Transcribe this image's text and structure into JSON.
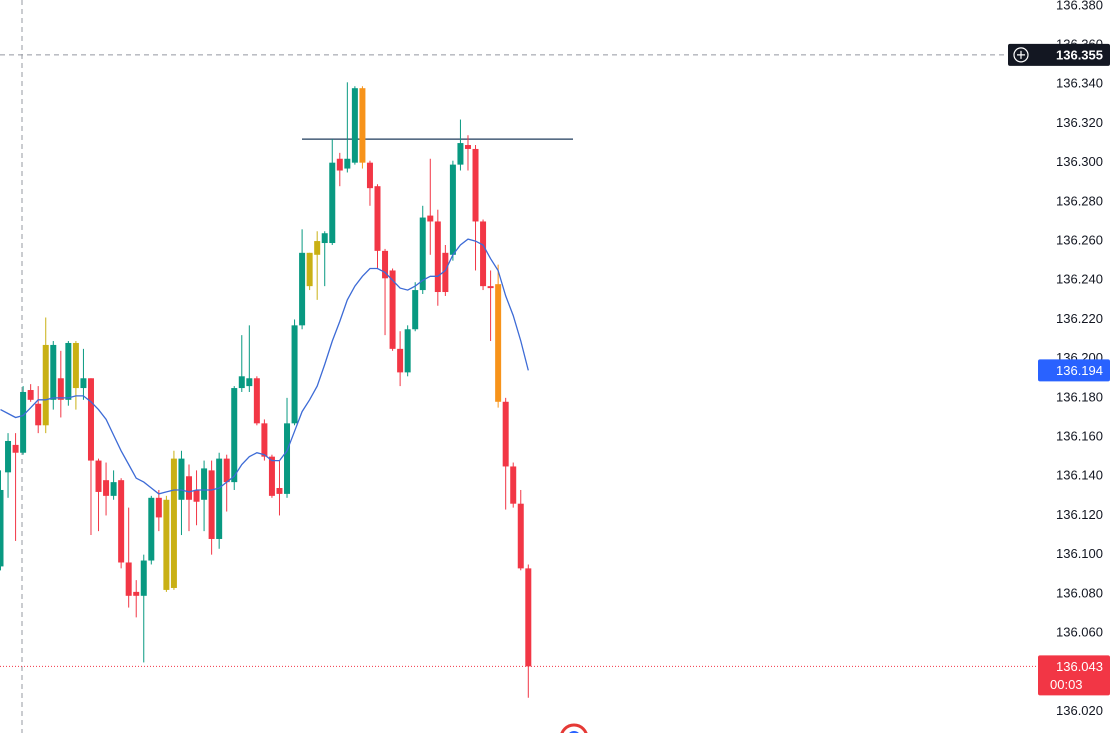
{
  "chart_data": {
    "type": "candlestick",
    "categories": [
      null,
      null,
      null,
      null,
      null,
      null,
      null,
      null,
      null,
      null,
      null,
      null,
      null,
      null,
      null,
      null,
      null,
      null,
      null,
      null,
      null,
      null,
      null,
      null,
      null,
      null,
      null,
      null,
      null,
      null,
      null,
      null,
      null,
      null,
      null,
      null,
      null,
      null,
      null,
      null,
      null,
      null,
      null,
      null,
      null,
      null,
      null,
      null,
      null,
      null,
      null,
      null,
      null,
      null,
      null,
      null,
      null,
      null,
      null,
      null,
      null,
      null,
      null,
      null,
      null,
      null,
      null,
      null,
      null,
      null,
      null
    ],
    "open": [
      136.094,
      136.142,
      136.156,
      136.152,
      136.184,
      136.177,
      136.166,
      136.179,
      136.19,
      136.179,
      136.185,
      136.185,
      136.19,
      136.148,
      136.138,
      136.13,
      136.138,
      136.096,
      136.081,
      136.079,
      136.097,
      136.129,
      136.082,
      136.083,
      136.128,
      136.14,
      136.133,
      136.128,
      136.143,
      136.108,
      136.149,
      136.137,
      136.185,
      136.186,
      136.19,
      136.167,
      136.15,
      136.134,
      136.131,
      136.167,
      136.217,
      136.237,
      136.253,
      136.259,
      136.259,
      136.302,
      136.297,
      136.3,
      136.338,
      136.3,
      136.288,
      136.255,
      136.245,
      136.205,
      136.193,
      136.215,
      136.235,
      136.273,
      136.27,
      136.254,
      136.253,
      136.299,
      136.309,
      136.307,
      136.27,
      136.237,
      136.238,
      136.178,
      136.145,
      136.126,
      136.093
    ],
    "high": [
      136.143,
      136.162,
      136.162,
      136.186,
      136.187,
      136.186,
      136.221,
      136.209,
      136.204,
      136.209,
      136.209,
      136.205,
      136.19,
      136.149,
      136.147,
      136.143,
      136.139,
      136.124,
      136.087,
      136.1,
      136.13,
      136.133,
      136.13,
      136.153,
      136.153,
      136.146,
      136.143,
      136.148,
      136.148,
      136.152,
      136.151,
      136.186,
      136.212,
      136.217,
      136.191,
      136.169,
      136.151,
      136.148,
      136.18,
      136.22,
      136.266,
      136.254,
      136.265,
      136.265,
      136.312,
      136.305,
      136.341,
      136.339,
      136.339,
      136.301,
      136.289,
      136.256,
      136.246,
      136.214,
      136.217,
      136.239,
      136.278,
      136.302,
      136.276,
      136.258,
      136.301,
      136.322,
      136.314,
      136.309,
      136.271,
      136.245,
      136.248,
      136.18,
      136.147,
      136.133,
      136.095
    ],
    "low": [
      136.092,
      136.129,
      136.107,
      136.151,
      136.178,
      136.162,
      136.162,
      136.174,
      136.17,
      136.176,
      136.174,
      136.179,
      136.11,
      136.112,
      136.12,
      136.128,
      136.093,
      136.073,
      136.068,
      136.045,
      136.095,
      136.112,
      136.081,
      136.082,
      136.11,
      136.112,
      136.115,
      136.112,
      136.1,
      136.103,
      136.122,
      136.133,
      136.183,
      136.183,
      136.166,
      136.148,
      136.129,
      136.12,
      136.129,
      136.166,
      136.215,
      136.235,
      136.23,
      136.237,
      136.258,
      136.288,
      136.295,
      136.299,
      136.297,
      136.278,
      136.246,
      136.212,
      136.204,
      136.186,
      136.191,
      136.214,
      136.233,
      136.253,
      136.227,
      136.232,
      136.25,
      136.296,
      136.296,
      136.245,
      136.235,
      136.209,
      136.175,
      136.123,
      136.124,
      136.092,
      136.027
    ],
    "close": [
      136.133,
      136.158,
      136.152,
      136.183,
      136.179,
      136.166,
      136.207,
      136.207,
      136.179,
      136.208,
      136.208,
      136.19,
      136.148,
      136.132,
      136.13,
      136.137,
      136.096,
      136.079,
      136.079,
      136.097,
      136.129,
      136.119,
      136.128,
      136.149,
      136.149,
      136.128,
      136.127,
      136.144,
      136.108,
      136.149,
      136.137,
      136.185,
      136.191,
      136.19,
      136.167,
      136.15,
      136.13,
      136.131,
      136.167,
      136.217,
      136.254,
      136.254,
      136.26,
      136.264,
      136.3,
      136.296,
      136.302,
      136.338,
      136.3,
      136.287,
      136.255,
      136.241,
      136.205,
      136.193,
      136.215,
      136.235,
      136.272,
      136.27,
      136.234,
      136.234,
      136.299,
      136.31,
      136.307,
      136.27,
      136.237,
      136.236,
      136.178,
      136.145,
      136.126,
      136.093,
      136.043
    ],
    "colors": [
      "#089981",
      "#089981",
      "#f23645",
      "#089981",
      "#f23645",
      "#f23645",
      "#c9b014",
      "#089981",
      "#f23645",
      "#089981",
      "#c9b014",
      "#089981",
      "#f23645",
      "#f23645",
      "#f23645",
      "#089981",
      "#f23645",
      "#f23645",
      "#f23645",
      "#089981",
      "#089981",
      "#f23645",
      "#c9b014",
      "#c9b014",
      "#089981",
      "#f23645",
      "#f23645",
      "#089981",
      "#f23645",
      "#089981",
      "#f23645",
      "#089981",
      "#089981",
      "#089981",
      "#f23645",
      "#f23645",
      "#f23645",
      "#f23645",
      "#089981",
      "#089981",
      "#089981",
      "#c9b014",
      "#c9b014",
      "#089981",
      "#089981",
      "#f23645",
      "#089981",
      "#089981",
      "#f7931a",
      "#f23645",
      "#f23645",
      "#f23645",
      "#f23645",
      "#f23645",
      "#089981",
      "#089981",
      "#089981",
      "#f23645",
      "#f23645",
      "#f23645",
      "#089981",
      "#089981",
      "#f23645",
      "#f23645",
      "#f23645",
      "#f23645",
      "#f7931a",
      "#f23645",
      "#f23645",
      "#f23645",
      "#f23645"
    ],
    "ma": {
      "color": "#3d6bd6",
      "tag_color": "#2962ff",
      "values": [
        136.174,
        136.172,
        136.17,
        136.171,
        136.175,
        136.179,
        136.179,
        136.18,
        136.18,
        136.18,
        136.181,
        136.181,
        136.178,
        136.174,
        136.169,
        136.161,
        136.153,
        136.146,
        136.139,
        136.137,
        136.134,
        136.131,
        136.132,
        136.133,
        136.133,
        136.132,
        136.133,
        136.133,
        136.133,
        136.134,
        136.137,
        136.14,
        136.146,
        136.15,
        136.152,
        136.151,
        136.148,
        136.148,
        136.153,
        136.163,
        136.173,
        136.179,
        136.186,
        136.197,
        136.209,
        136.219,
        136.23,
        136.237,
        136.242,
        136.246,
        136.246,
        136.244,
        136.24,
        136.236,
        136.235,
        136.237,
        136.24,
        136.242,
        136.242,
        136.245,
        136.253,
        136.258,
        136.261,
        136.26,
        136.258,
        136.251,
        136.245,
        136.232,
        136.222,
        136.209,
        136.194
      ]
    },
    "hline": 136.312,
    "hline_color": "#1f3b5c",
    "crosshair_price": 136.355,
    "last_price_color": "#f23645",
    "countdown": "00:03",
    "ylim": [
      136.009,
      136.383
    ],
    "yticks": [
      {
        "value": 136.02,
        "label": "136.020"
      },
      {
        "value": 136.04,
        "label": "136.040"
      },
      {
        "value": 136.06,
        "label": "136.060"
      },
      {
        "value": 136.08,
        "label": "136.080"
      },
      {
        "value": 136.1,
        "label": "136.100"
      },
      {
        "value": 136.12,
        "label": "136.120"
      },
      {
        "value": 136.14,
        "label": "136.140"
      },
      {
        "value": 136.16,
        "label": "136.160"
      },
      {
        "value": 136.18,
        "label": "136.180"
      },
      {
        "value": 136.2,
        "label": "136.200"
      },
      {
        "value": 136.22,
        "label": "136.220"
      },
      {
        "value": 136.24,
        "label": "136.240"
      },
      {
        "value": 136.26,
        "label": "136.260"
      },
      {
        "value": 136.28,
        "label": "136.280"
      },
      {
        "value": 136.3,
        "label": "136.300"
      },
      {
        "value": 136.32,
        "label": "136.320"
      },
      {
        "value": 136.34,
        "label": "136.340"
      },
      {
        "value": 136.36,
        "label": "136.360"
      },
      {
        "value": 136.38,
        "label": "136.380"
      }
    ],
    "grid": false
  }
}
